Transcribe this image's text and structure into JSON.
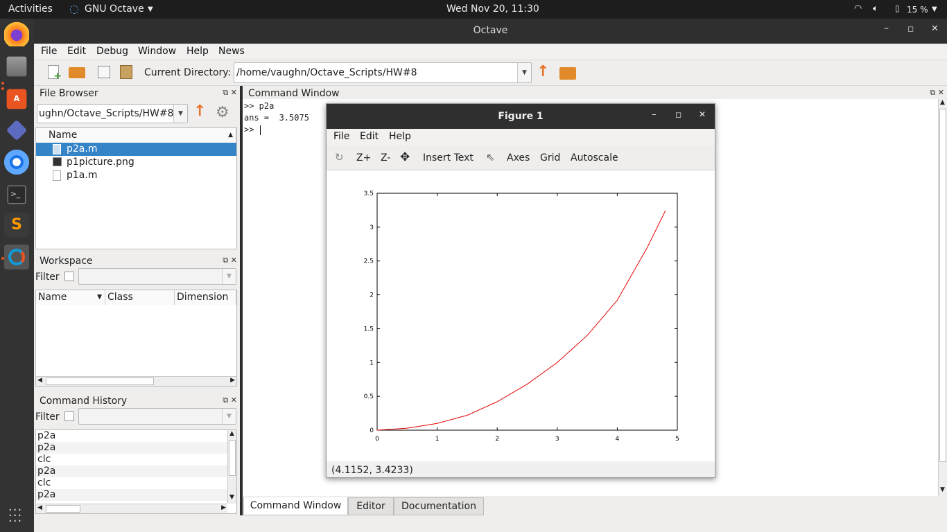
{
  "topbar": {
    "activities": "Activities",
    "app_name": "GNU Octave",
    "clock": "Wed Nov 20, 11:30",
    "battery": "15 %"
  },
  "dock": {
    "icons": [
      "firefox-icon",
      "files-icon",
      "software-icon",
      "gitkraken-icon",
      "chromium-icon",
      "terminal-icon",
      "sublime-icon",
      "octave-icon"
    ],
    "apps_grid": "show-apps-icon"
  },
  "window": {
    "title": "Octave"
  },
  "menu": {
    "file": "File",
    "edit": "Edit",
    "debug": "Debug",
    "window": "Window",
    "help": "Help",
    "news": "News"
  },
  "toolbar": {
    "current_dir_label": "Current Directory:",
    "current_dir": "/home/vaughn/Octave_Scripts/HW#8"
  },
  "file_browser": {
    "title": "File Browser",
    "path": "ughn/Octave_Scripts/HW#8",
    "col_name": "Name",
    "files": [
      {
        "name": "p2a.m",
        "selected": true
      },
      {
        "name": "p1picture.png",
        "selected": false
      },
      {
        "name": "p1a.m",
        "selected": false
      }
    ]
  },
  "workspace": {
    "title": "Workspace",
    "filter_label": "Filter",
    "cols": [
      "Name",
      "Class",
      "Dimension"
    ]
  },
  "history": {
    "title": "Command History",
    "filter_label": "Filter",
    "items": [
      "p2a",
      "p2a",
      "clc",
      "p2a",
      "clc",
      "p2a"
    ]
  },
  "command_window": {
    "title": "Command Window",
    "lines": [
      ">> p2a",
      "ans =  3.5075",
      ">> "
    ]
  },
  "tabs": {
    "command": "Command Window",
    "editor": "Editor",
    "docs": "Documentation"
  },
  "figure": {
    "title": "Figure 1",
    "menu": {
      "file": "File",
      "edit": "Edit",
      "help": "Help"
    },
    "tools": {
      "zin": "Z+",
      "zout": "Z-",
      "insert": "Insert Text",
      "axes": "Axes",
      "grid": "Grid",
      "autoscale": "Autoscale"
    },
    "status": "(4.1152, 3.4233)"
  },
  "chart_data": {
    "type": "line",
    "xlim": [
      0,
      5
    ],
    "ylim": [
      0,
      3.5
    ],
    "xticks": [
      "0",
      "1",
      "2",
      "3",
      "4",
      "5"
    ],
    "yticks": [
      "0",
      "0.5",
      "1",
      "1.5",
      "2",
      "2.5",
      "3",
      "3.5"
    ],
    "series": [
      {
        "color": "#e00000",
        "x": [
          0,
          0.5,
          1,
          1.5,
          2,
          2.5,
          3,
          3.5,
          4,
          4.5,
          4.8
        ],
        "y": [
          0,
          0.03,
          0.1,
          0.22,
          0.42,
          0.68,
          1.0,
          1.4,
          1.92,
          2.7,
          3.24
        ]
      }
    ],
    "grid": false
  }
}
